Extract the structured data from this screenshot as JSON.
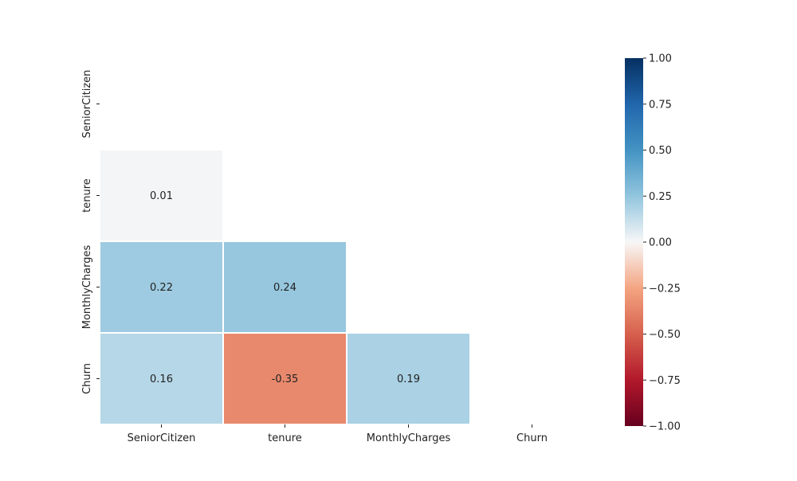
{
  "chart_data": {
    "type": "heatmap",
    "title": "",
    "xlabel": "",
    "ylabel": "",
    "x_labels": [
      "SeniorCitizen",
      "tenure",
      "MonthlyCharges",
      "Churn"
    ],
    "y_labels": [
      "SeniorCitizen",
      "tenure",
      "MonthlyCharges",
      "Churn"
    ],
    "mask": "upper-triangle-including-diagonal",
    "values": [
      [
        null,
        null,
        null,
        null
      ],
      [
        0.01,
        null,
        null,
        null
      ],
      [
        0.22,
        0.24,
        null,
        null
      ],
      [
        0.16,
        -0.35,
        0.19,
        null
      ]
    ],
    "value_labels": [
      [
        null,
        null,
        null,
        null
      ],
      [
        "0.01",
        null,
        null,
        null
      ],
      [
        "0.22",
        "0.24",
        null,
        null
      ],
      [
        "0.16",
        "-0.35",
        "0.19",
        null
      ]
    ],
    "colorbar": {
      "colormap": "RdBu",
      "vmin": -1.0,
      "vmax": 1.0,
      "ticks": [
        1.0,
        0.75,
        0.5,
        0.25,
        0.0,
        -0.25,
        -0.5,
        -0.75,
        -1.0
      ],
      "tick_labels": [
        "1.00",
        "0.75",
        "0.50",
        "0.25",
        "0.00",
        "−0.25",
        "−0.50",
        "−0.75",
        "−1.00"
      ]
    }
  }
}
